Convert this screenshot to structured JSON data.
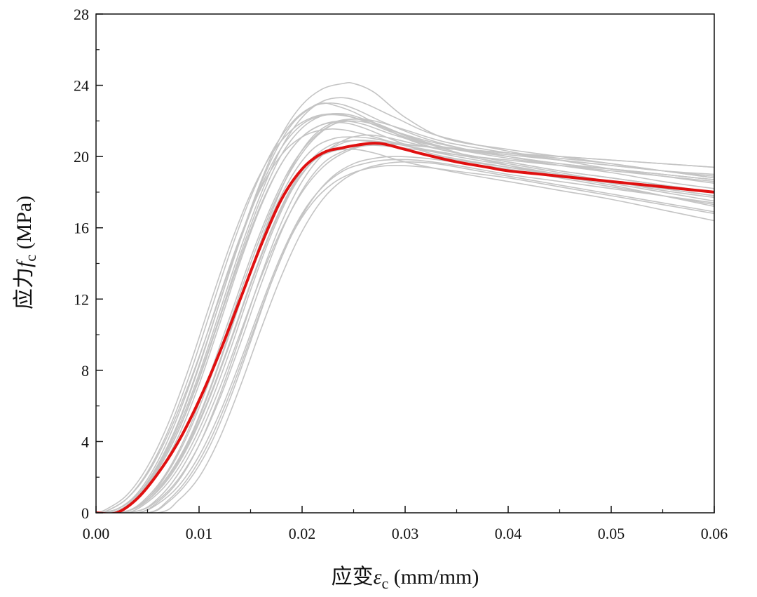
{
  "chart_data": {
    "type": "line",
    "xlabel": "应变εc (mm/mm)",
    "ylabel": "应力fc (MPa)",
    "xlabel_parts": {
      "prefix": "应变",
      "symbol": "ε",
      "sub": "c",
      "suffix": " (mm/mm)"
    },
    "ylabel_parts": {
      "prefix": "应力",
      "symbol": "f",
      "sub": "c",
      "suffix": " (MPa)"
    },
    "xlim": [
      0,
      0.06
    ],
    "ylim": [
      0,
      28
    ],
    "x_ticks": [
      0.0,
      0.01,
      0.02,
      0.03,
      0.04,
      0.05,
      0.06
    ],
    "x_tick_labels": [
      "0.00",
      "0.01",
      "0.02",
      "0.03",
      "0.04",
      "0.05",
      "0.06"
    ],
    "y_ticks": [
      0,
      4,
      8,
      12,
      16,
      20,
      24,
      28
    ],
    "y_tick_labels": [
      "0",
      "4",
      "8",
      "12",
      "16",
      "20",
      "24",
      "28"
    ],
    "grid": false,
    "colors": {
      "samples": "#c4c4c4",
      "mean": "#e01010",
      "axis": "#111111"
    },
    "mean_curve": {
      "x": [
        0,
        0.002,
        0.004,
        0.006,
        0.008,
        0.01,
        0.012,
        0.014,
        0.016,
        0.018,
        0.02,
        0.022,
        0.024,
        0.026,
        0.027,
        0.028,
        0.03,
        0.032,
        0.035,
        0.038,
        0.04,
        0.045,
        0.05,
        0.055,
        0.06
      ],
      "y": [
        0,
        0.0,
        0.8,
        2.2,
        4.0,
        6.3,
        9.0,
        12.0,
        15.0,
        17.6,
        19.3,
        20.2,
        20.5,
        20.7,
        20.75,
        20.7,
        20.4,
        20.1,
        19.7,
        19.4,
        19.2,
        18.9,
        18.6,
        18.3,
        18.0
      ]
    },
    "sample_curves": [
      {
        "x": [
          0,
          0.001,
          0.003,
          0.005,
          0.007,
          0.009,
          0.011,
          0.013,
          0.015,
          0.017,
          0.019,
          0.021,
          0.022,
          0.023,
          0.025,
          0.028,
          0.031,
          0.035,
          0.04,
          0.045,
          0.05,
          0.055,
          0.06
        ],
        "y": [
          0,
          0.1,
          0.8,
          2.2,
          4.4,
          7.2,
          10.4,
          13.8,
          17.0,
          19.8,
          21.8,
          22.8,
          23.0,
          22.9,
          22.5,
          21.6,
          20.8,
          20.2,
          19.7,
          19.2,
          18.8,
          18.4,
          18.0
        ]
      },
      {
        "x": [
          0,
          0.002,
          0.004,
          0.006,
          0.008,
          0.01,
          0.012,
          0.014,
          0.016,
          0.018,
          0.02,
          0.022,
          0.024,
          0.025,
          0.027,
          0.03,
          0.034,
          0.04,
          0.045,
          0.05,
          0.055,
          0.06
        ],
        "y": [
          0,
          0.2,
          1.0,
          2.6,
          5.0,
          8.2,
          11.8,
          15.4,
          18.6,
          21.2,
          22.9,
          23.8,
          24.1,
          24.1,
          23.6,
          22.2,
          21.0,
          20.4,
          20.0,
          19.6,
          19.2,
          18.8
        ]
      },
      {
        "x": [
          0,
          0.003,
          0.005,
          0.007,
          0.009,
          0.011,
          0.013,
          0.015,
          0.017,
          0.019,
          0.021,
          0.023,
          0.025,
          0.028,
          0.032,
          0.036,
          0.04,
          0.045,
          0.05,
          0.055,
          0.06
        ],
        "y": [
          0,
          0.0,
          0.6,
          1.7,
          3.5,
          6.0,
          9.1,
          12.5,
          15.6,
          18.1,
          19.7,
          20.5,
          20.9,
          20.8,
          20.4,
          20.0,
          19.6,
          19.1,
          18.6,
          18.2,
          17.8
        ]
      },
      {
        "x": [
          0,
          0.004,
          0.006,
          0.008,
          0.01,
          0.012,
          0.014,
          0.016,
          0.018,
          0.02,
          0.022,
          0.024,
          0.026,
          0.028,
          0.031,
          0.035,
          0.04,
          0.045,
          0.05,
          0.055,
          0.06
        ],
        "y": [
          0,
          0.0,
          0.5,
          1.5,
          3.2,
          5.6,
          8.5,
          11.6,
          14.5,
          16.8,
          18.3,
          19.2,
          19.6,
          19.8,
          19.8,
          19.5,
          19.0,
          18.6,
          18.2,
          17.8,
          17.4
        ]
      },
      {
        "x": [
          0,
          0.002,
          0.004,
          0.006,
          0.008,
          0.01,
          0.012,
          0.014,
          0.016,
          0.018,
          0.02,
          0.022,
          0.024,
          0.026,
          0.029,
          0.033,
          0.04,
          0.045,
          0.05,
          0.055,
          0.06
        ],
        "y": [
          0,
          0.1,
          0.9,
          2.4,
          4.6,
          7.6,
          11.0,
          14.5,
          17.6,
          20.1,
          21.6,
          22.3,
          22.4,
          22.1,
          21.4,
          20.6,
          20.0,
          19.6,
          19.3,
          19.0,
          18.7
        ]
      },
      {
        "x": [
          0,
          0.003,
          0.005,
          0.007,
          0.009,
          0.011,
          0.013,
          0.015,
          0.017,
          0.019,
          0.021,
          0.023,
          0.025,
          0.027,
          0.03,
          0.034,
          0.04,
          0.045,
          0.05,
          0.055,
          0.06
        ],
        "y": [
          0,
          0.1,
          0.7,
          2.0,
          4.0,
          6.8,
          10.1,
          13.6,
          16.8,
          19.4,
          21.1,
          21.9,
          22.1,
          21.9,
          21.2,
          20.4,
          19.5,
          19.0,
          18.6,
          18.1,
          17.7
        ]
      },
      {
        "x": [
          0,
          0.002,
          0.004,
          0.006,
          0.008,
          0.01,
          0.012,
          0.014,
          0.016,
          0.018,
          0.02,
          0.022,
          0.024,
          0.027,
          0.03,
          0.035,
          0.04,
          0.045,
          0.05,
          0.055,
          0.06
        ],
        "y": [
          0,
          0.2,
          1.1,
          2.9,
          5.5,
          8.7,
          12.2,
          15.5,
          18.2,
          20.1,
          21.1,
          21.5,
          21.5,
          21.1,
          20.6,
          20.0,
          19.5,
          19.0,
          18.5,
          18.0,
          17.5
        ]
      },
      {
        "x": [
          0,
          0.005,
          0.007,
          0.009,
          0.011,
          0.013,
          0.015,
          0.017,
          0.019,
          0.021,
          0.023,
          0.025,
          0.027,
          0.029,
          0.032,
          0.036,
          0.04,
          0.045,
          0.05,
          0.055,
          0.06
        ],
        "y": [
          0,
          0.0,
          0.6,
          1.8,
          3.7,
          6.4,
          9.6,
          12.9,
          15.6,
          17.4,
          18.5,
          19.1,
          19.4,
          19.5,
          19.4,
          19.1,
          18.8,
          18.3,
          17.8,
          17.3,
          16.8
        ]
      },
      {
        "x": [
          0,
          0.001,
          0.003,
          0.005,
          0.007,
          0.009,
          0.011,
          0.013,
          0.015,
          0.017,
          0.019,
          0.021,
          0.023,
          0.025,
          0.028,
          0.032,
          0.036,
          0.04,
          0.045,
          0.05,
          0.055,
          0.06
        ],
        "y": [
          0,
          0.2,
          1.0,
          2.6,
          5.0,
          8.1,
          11.6,
          15.0,
          17.9,
          20.1,
          21.5,
          22.2,
          22.4,
          22.2,
          21.6,
          20.9,
          20.4,
          20.0,
          19.6,
          19.3,
          19.0,
          18.7
        ]
      },
      {
        "x": [
          0,
          0.003,
          0.005,
          0.007,
          0.009,
          0.011,
          0.013,
          0.015,
          0.017,
          0.019,
          0.021,
          0.023,
          0.025,
          0.027,
          0.03,
          0.034,
          0.04,
          0.045,
          0.05,
          0.055,
          0.06
        ],
        "y": [
          0,
          0.1,
          0.8,
          2.3,
          4.5,
          7.4,
          10.7,
          14.0,
          17.0,
          19.3,
          20.9,
          21.8,
          22.1,
          22.0,
          21.5,
          20.8,
          20.2,
          19.8,
          19.5,
          19.2,
          19.0
        ]
      },
      {
        "x": [
          0,
          0.002,
          0.004,
          0.006,
          0.008,
          0.01,
          0.012,
          0.014,
          0.016,
          0.018,
          0.02,
          0.022,
          0.024,
          0.026,
          0.029,
          0.033,
          0.04,
          0.045,
          0.05,
          0.055,
          0.06
        ],
        "y": [
          0,
          0.1,
          0.9,
          2.5,
          4.8,
          7.8,
          11.3,
          14.8,
          17.9,
          20.5,
          22.2,
          23.1,
          23.3,
          23.0,
          22.2,
          21.2,
          20.3,
          19.8,
          19.3,
          18.9,
          18.5
        ]
      },
      {
        "x": [
          0,
          0.004,
          0.006,
          0.008,
          0.01,
          0.012,
          0.014,
          0.016,
          0.018,
          0.02,
          0.022,
          0.024,
          0.026,
          0.028,
          0.031,
          0.035,
          0.04,
          0.045,
          0.05,
          0.055,
          0.06
        ],
        "y": [
          0,
          0.1,
          0.7,
          1.9,
          3.8,
          6.4,
          9.5,
          12.8,
          15.8,
          18.1,
          19.6,
          20.3,
          20.6,
          20.6,
          20.4,
          20.1,
          19.8,
          19.5,
          19.3,
          19.0,
          18.7
        ]
      },
      {
        "x": [
          0,
          0.003,
          0.005,
          0.007,
          0.009,
          0.011,
          0.013,
          0.015,
          0.017,
          0.019,
          0.021,
          0.023,
          0.025,
          0.027,
          0.03,
          0.035,
          0.04,
          0.045,
          0.05,
          0.055,
          0.06
        ],
        "y": [
          0,
          0.1,
          0.8,
          2.1,
          4.1,
          6.9,
          10.2,
          13.6,
          16.6,
          18.9,
          20.4,
          21.0,
          21.1,
          21.0,
          20.7,
          20.4,
          20.2,
          20.0,
          19.8,
          19.6,
          19.4
        ]
      },
      {
        "x": [
          0,
          0.002,
          0.004,
          0.006,
          0.008,
          0.01,
          0.012,
          0.014,
          0.016,
          0.018,
          0.02,
          0.022,
          0.024,
          0.026,
          0.029,
          0.033,
          0.04,
          0.045,
          0.05,
          0.055,
          0.06
        ],
        "y": [
          0,
          0.2,
          1.0,
          2.7,
          5.1,
          8.3,
          11.8,
          15.3,
          18.3,
          20.5,
          21.8,
          22.3,
          22.3,
          22.0,
          21.3,
          20.6,
          20.1,
          19.8,
          19.5,
          19.2,
          18.9
        ]
      },
      {
        "x": [
          0,
          0.006,
          0.008,
          0.01,
          0.012,
          0.014,
          0.016,
          0.018,
          0.02,
          0.022,
          0.024,
          0.026,
          0.028,
          0.03,
          0.033,
          0.037,
          0.04,
          0.045,
          0.05,
          0.055,
          0.06
        ],
        "y": [
          0,
          0.0,
          0.7,
          2.0,
          4.2,
          7.1,
          10.3,
          13.3,
          15.8,
          17.6,
          18.7,
          19.3,
          19.6,
          19.7,
          19.6,
          19.2,
          18.9,
          18.4,
          17.9,
          17.4,
          16.9
        ]
      },
      {
        "x": [
          0,
          0.003,
          0.005,
          0.007,
          0.009,
          0.011,
          0.013,
          0.015,
          0.017,
          0.019,
          0.021,
          0.023,
          0.025,
          0.027,
          0.03,
          0.035,
          0.04,
          0.045,
          0.05,
          0.055,
          0.06
        ],
        "y": [
          0,
          0.1,
          0.7,
          2.0,
          3.9,
          6.5,
          9.6,
          12.9,
          15.9,
          18.3,
          19.9,
          20.7,
          20.9,
          20.8,
          20.4,
          19.8,
          19.4,
          19.0,
          18.6,
          18.2,
          17.8
        ]
      },
      {
        "x": [
          0,
          0.001,
          0.003,
          0.005,
          0.007,
          0.009,
          0.011,
          0.013,
          0.015,
          0.017,
          0.019,
          0.021,
          0.023,
          0.025,
          0.028,
          0.032,
          0.036,
          0.04,
          0.045,
          0.05,
          0.055,
          0.06
        ],
        "y": [
          0,
          0.1,
          0.8,
          2.3,
          4.6,
          7.6,
          11.1,
          14.6,
          17.7,
          20.2,
          21.9,
          22.8,
          23.0,
          22.7,
          21.9,
          21.0,
          20.4,
          20.0,
          19.5,
          19.1,
          18.6,
          18.2
        ]
      },
      {
        "x": [
          0,
          0.004,
          0.006,
          0.008,
          0.01,
          0.012,
          0.014,
          0.016,
          0.018,
          0.02,
          0.022,
          0.024,
          0.026,
          0.028,
          0.031,
          0.035,
          0.04,
          0.045,
          0.05,
          0.055,
          0.06
        ],
        "y": [
          0,
          0.0,
          0.6,
          1.8,
          3.8,
          6.6,
          9.9,
          13.3,
          16.3,
          18.6,
          20.1,
          20.9,
          21.2,
          21.1,
          20.7,
          20.2,
          19.7,
          19.2,
          18.8,
          18.4,
          18.0
        ]
      },
      {
        "x": [
          0,
          0.002,
          0.004,
          0.006,
          0.008,
          0.01,
          0.012,
          0.014,
          0.016,
          0.018,
          0.02,
          0.022,
          0.024,
          0.026,
          0.029,
          0.033,
          0.04,
          0.045,
          0.05,
          0.055,
          0.06
        ],
        "y": [
          0,
          0.1,
          0.8,
          2.2,
          4.3,
          7.2,
          10.6,
          14.1,
          17.2,
          19.6,
          21.1,
          21.8,
          21.9,
          21.6,
          20.9,
          20.1,
          19.4,
          18.9,
          18.4,
          17.8,
          17.2
        ]
      },
      {
        "x": [
          0,
          0.005,
          0.007,
          0.009,
          0.011,
          0.013,
          0.015,
          0.017,
          0.019,
          0.021,
          0.023,
          0.025,
          0.027,
          0.029,
          0.032,
          0.036,
          0.04,
          0.045,
          0.05,
          0.055,
          0.06
        ],
        "y": [
          0,
          0.0,
          0.7,
          2.0,
          4.0,
          6.7,
          9.8,
          12.9,
          15.6,
          17.6,
          18.9,
          19.6,
          19.9,
          20.0,
          19.9,
          19.6,
          19.3,
          18.8,
          18.3,
          17.8,
          17.3
        ]
      },
      {
        "x": [
          0,
          0.003,
          0.005,
          0.007,
          0.009,
          0.011,
          0.013,
          0.015,
          0.017,
          0.019,
          0.021,
          0.023,
          0.025,
          0.027,
          0.03,
          0.034,
          0.04,
          0.045,
          0.05,
          0.055,
          0.06
        ],
        "y": [
          0,
          0.1,
          0.9,
          2.4,
          4.7,
          7.7,
          11.0,
          14.3,
          17.2,
          19.5,
          21.0,
          21.8,
          22.0,
          21.8,
          21.2,
          20.5,
          19.9,
          19.5,
          19.2,
          18.9,
          18.6
        ]
      },
      {
        "x": [
          0,
          0.002,
          0.004,
          0.006,
          0.008,
          0.01,
          0.012,
          0.014,
          0.016,
          0.018,
          0.02,
          0.022,
          0.024,
          0.026,
          0.029,
          0.033,
          0.04,
          0.045,
          0.05,
          0.055,
          0.06
        ],
        "y": [
          0,
          0.1,
          0.9,
          2.4,
          4.6,
          7.5,
          10.9,
          14.3,
          17.3,
          19.6,
          21.1,
          21.8,
          22.0,
          21.8,
          21.2,
          20.6,
          20.2,
          20.0,
          19.8,
          19.6,
          19.4
        ]
      },
      {
        "x": [
          0,
          0.004,
          0.006,
          0.008,
          0.01,
          0.012,
          0.014,
          0.016,
          0.018,
          0.02,
          0.022,
          0.024,
          0.026,
          0.028,
          0.031,
          0.035,
          0.04,
          0.045,
          0.05,
          0.055,
          0.06
        ],
        "y": [
          0,
          0.1,
          0.8,
          2.2,
          4.3,
          7.0,
          10.1,
          13.2,
          15.9,
          18.0,
          19.4,
          20.2,
          20.6,
          20.7,
          20.6,
          20.4,
          20.2,
          19.9,
          19.6,
          19.2,
          18.8
        ]
      },
      {
        "x": [
          0,
          0.003,
          0.005,
          0.007,
          0.009,
          0.011,
          0.013,
          0.015,
          0.017,
          0.019,
          0.021,
          0.023,
          0.025,
          0.027,
          0.03,
          0.035,
          0.04,
          0.045,
          0.05,
          0.055,
          0.06
        ],
        "y": [
          0,
          0.1,
          0.7,
          1.9,
          3.8,
          6.4,
          9.5,
          12.8,
          15.8,
          18.2,
          19.7,
          20.3,
          20.4,
          20.2,
          19.7,
          19.1,
          18.6,
          18.1,
          17.6,
          17.0,
          16.4
        ]
      }
    ]
  }
}
